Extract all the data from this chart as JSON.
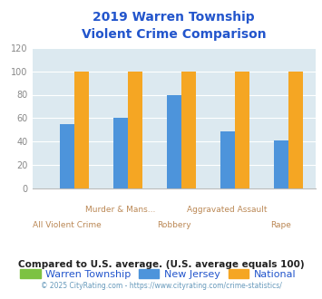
{
  "title": "2019 Warren Township\nViolent Crime Comparison",
  "x_top_labels": [
    "",
    "Murder & Mans...",
    "",
    "Aggravated Assault",
    ""
  ],
  "x_bottom_labels": [
    "All Violent Crime",
    "",
    "Robbery",
    "",
    "Rape"
  ],
  "warren_values": [
    0,
    0,
    0,
    0,
    0
  ],
  "nj_values": [
    55,
    60,
    80,
    49,
    41
  ],
  "national_values": [
    100,
    100,
    100,
    100,
    100
  ],
  "warren_color": "#7dc242",
  "nj_color": "#4d94db",
  "national_color": "#f5a623",
  "bg_color": "#dce9f0",
  "ylim": [
    0,
    120
  ],
  "yticks": [
    0,
    20,
    40,
    60,
    80,
    100,
    120
  ],
  "legend_labels": [
    "Warren Township",
    "New Jersey",
    "National"
  ],
  "footnote1": "Compared to U.S. average. (U.S. average equals 100)",
  "footnote2": "© 2025 CityRating.com - https://www.cityrating.com/crime-statistics/",
  "title_color": "#2255cc",
  "xlabel_color": "#bb8855",
  "footnote1_color": "#222222",
  "footnote2_color": "#6699bb",
  "legend_text_color": "#2255cc",
  "tick_color": "#888888"
}
